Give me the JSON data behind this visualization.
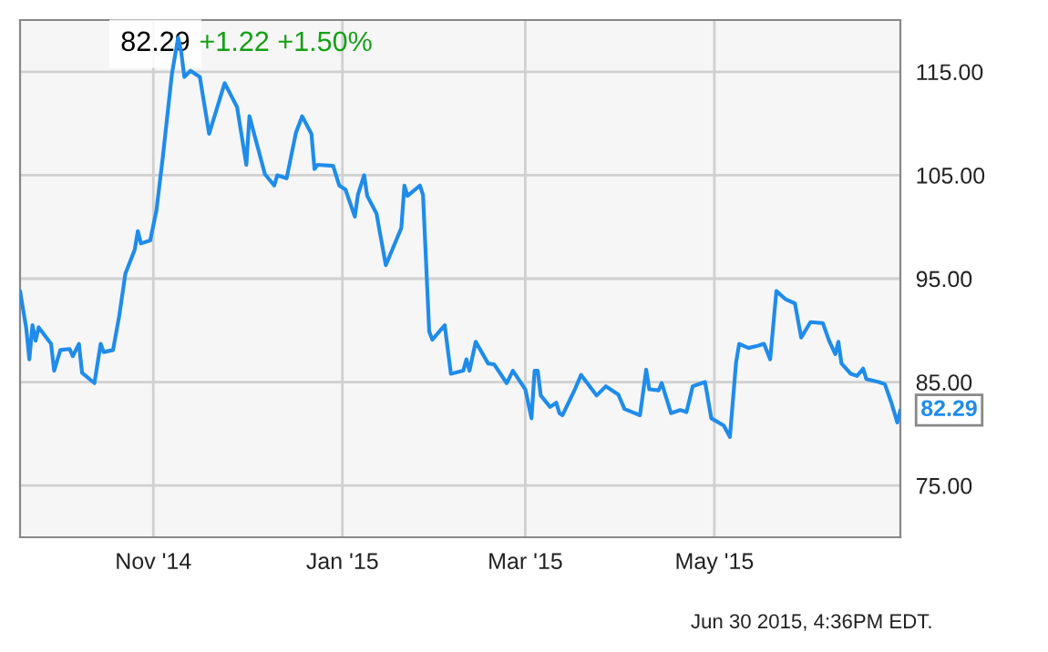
{
  "chart_data": {
    "type": "line",
    "title": "82.29",
    "subtitle": "+1.22 +1.50%",
    "x": [
      "2014-09-19",
      "2014-09-21",
      "2014-09-22",
      "2014-09-23",
      "2014-09-24",
      "2014-09-25",
      "2014-09-29",
      "2014-09-30",
      "2014-10-02",
      "2014-10-05",
      "2014-10-06",
      "2014-10-08",
      "2014-10-09",
      "2014-10-13",
      "2014-10-15",
      "2014-10-16",
      "2014-10-19",
      "2014-10-21",
      "2014-10-23",
      "2014-10-26",
      "2014-10-27",
      "2014-10-28",
      "2014-10-31",
      "2014-11-02",
      "2014-11-04",
      "2014-11-07",
      "2014-11-09",
      "2014-11-10",
      "2014-11-11",
      "2014-11-13",
      "2014-11-16",
      "2014-11-19",
      "2014-11-24",
      "2014-11-28",
      "2014-12-01",
      "2014-12-02",
      "2014-12-07",
      "2014-12-10",
      "2014-12-11",
      "2014-12-14",
      "2014-12-17",
      "2014-12-19",
      "2014-12-22",
      "2014-12-23",
      "2014-12-24",
      "2014-12-29",
      "2014-12-31",
      "2015-01-02",
      "2015-01-05",
      "2015-01-06",
      "2015-01-08",
      "2015-01-09",
      "2015-01-12",
      "2015-01-13",
      "2015-01-15",
      "2015-01-20",
      "2015-01-21",
      "2015-01-22",
      "2015-01-26",
      "2015-01-27",
      "2015-01-29",
      "2015-01-30",
      "2015-02-03",
      "2015-02-05",
      "2015-02-09",
      "2015-02-10",
      "2015-02-11",
      "2015-02-13",
      "2015-02-17",
      "2015-02-19",
      "2015-02-23",
      "2015-02-25",
      "2015-03-01",
      "2015-03-03",
      "2015-03-04",
      "2015-03-05",
      "2015-03-06",
      "2015-03-09",
      "2015-03-11",
      "2015-03-12",
      "2015-03-13",
      "2015-03-17",
      "2015-03-19",
      "2015-03-24",
      "2015-03-27",
      "2015-03-31",
      "2015-04-02",
      "2015-04-07",
      "2015-04-09",
      "2015-04-10",
      "2015-04-13",
      "2015-04-14",
      "2015-04-17",
      "2015-04-20",
      "2015-04-22",
      "2015-04-24",
      "2015-04-28",
      "2015-04-30",
      "2015-05-04",
      "2015-05-06",
      "2015-05-08",
      "2015-05-09",
      "2015-05-12",
      "2015-05-15",
      "2015-05-17",
      "2015-05-19",
      "2015-05-21",
      "2015-05-24",
      "2015-05-27",
      "2015-05-29",
      "2015-06-01",
      "2015-06-05",
      "2015-06-07",
      "2015-06-09",
      "2015-06-10",
      "2015-06-11",
      "2015-06-14",
      "2015-06-16",
      "2015-06-18",
      "2015-06-19",
      "2015-06-23",
      "2015-06-25",
      "2015-06-27",
      "2015-06-29",
      "2015-06-30"
    ],
    "series": [
      {
        "color": "#1f8ceb",
        "values": [
          93.8,
          90.2,
          87.2,
          90.5,
          89.0,
          90.3,
          88.7,
          86.1,
          88.1,
          88.2,
          87.5,
          88.7,
          85.9,
          84.9,
          88.7,
          87.9,
          88.1,
          91.4,
          95.5,
          97.8,
          99.6,
          98.4,
          98.7,
          101.6,
          106.6,
          114.8,
          118.3,
          116.9,
          114.5,
          115.1,
          114.5,
          109.0,
          113.9,
          111.6,
          106.0,
          110.7,
          105.1,
          104.0,
          105.0,
          104.7,
          109.1,
          110.7,
          109.0,
          105.6,
          106.0,
          105.9,
          104.0,
          103.6,
          101.0,
          103.1,
          105.0,
          103.0,
          101.3,
          99.6,
          96.3,
          99.9,
          104.0,
          103.0,
          104.0,
          103.1,
          89.9,
          89.1,
          90.5,
          85.8,
          86.1,
          87.2,
          86.1,
          88.9,
          86.8,
          86.7,
          84.9,
          86.1,
          84.3,
          81.5,
          86.1,
          86.1,
          83.7,
          82.6,
          83.0,
          82.0,
          81.8,
          84.3,
          85.7,
          83.7,
          84.6,
          83.8,
          82.4,
          81.8,
          86.2,
          84.3,
          84.2,
          84.9,
          82.0,
          82.3,
          82.1,
          84.6,
          85.0,
          81.5,
          80.8,
          79.7,
          86.9,
          88.7,
          88.3,
          88.5,
          88.7,
          87.2,
          93.8,
          93.0,
          92.6,
          89.3,
          90.8,
          90.7,
          89.0,
          87.7,
          88.9,
          86.8,
          85.8,
          85.6,
          86.3,
          85.3,
          85.0,
          84.8,
          83.1,
          81.1,
          82.29
        ]
      }
    ],
    "xlim": [
      "2014-09-19",
      "2015-06-30"
    ],
    "xticks": [
      {
        "value": "2014-11-01",
        "label": "Nov '14"
      },
      {
        "value": "2015-01-01",
        "label": "Jan '15"
      },
      {
        "value": "2015-03-01",
        "label": "Mar '15"
      },
      {
        "value": "2015-05-01",
        "label": "May '15"
      }
    ],
    "ylim": [
      70,
      120
    ],
    "yticks": [
      {
        "value": 75,
        "label": "75.00"
      },
      {
        "value": 85,
        "label": "85.00"
      },
      {
        "value": 95,
        "label": "95.00"
      },
      {
        "value": 105,
        "label": "105.00"
      },
      {
        "value": 115,
        "label": "115.00"
      }
    ],
    "annotations": [
      {
        "text": "82.29",
        "x": "2015-06-30",
        "y": 82.29
      },
      "Jun 30 2015, 4:36PM EDT."
    ],
    "grid": true,
    "marker": "none",
    "line_style": "solid"
  }
}
